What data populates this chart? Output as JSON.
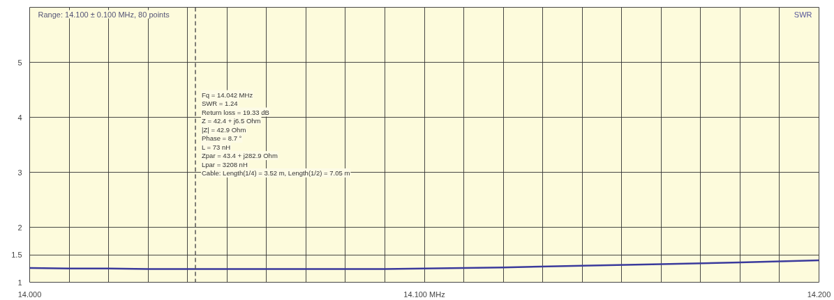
{
  "chart_data": {
    "type": "line",
    "title": "Range: 14.100 ± 0.100 MHz, 80 points",
    "ylabel": "SWR",
    "x": [
      14.0,
      14.01,
      14.02,
      14.03,
      14.04,
      14.06,
      14.08,
      14.09,
      14.1,
      14.12,
      14.14,
      14.16,
      14.18,
      14.2
    ],
    "series": [
      {
        "color": "#3a3a9c",
        "values": [
          1.26,
          1.25,
          1.25,
          1.24,
          1.24,
          1.24,
          1.24,
          1.24,
          1.25,
          1.27,
          1.3,
          1.33,
          1.36,
          1.4
        ]
      }
    ],
    "xlim": [
      14.0,
      14.2
    ],
    "xticks": [
      {
        "value": 14.0,
        "label": "14.000"
      },
      {
        "value": 14.01,
        "label": null
      },
      {
        "value": 14.02,
        "label": null
      },
      {
        "value": 14.03,
        "label": null
      },
      {
        "value": 14.04,
        "label": null
      },
      {
        "value": 14.05,
        "label": null
      },
      {
        "value": 14.06,
        "label": null
      },
      {
        "value": 14.07,
        "label": null
      },
      {
        "value": 14.08,
        "label": null
      },
      {
        "value": 14.09,
        "label": null
      },
      {
        "value": 14.1,
        "label": "14.100 MHz"
      },
      {
        "value": 14.11,
        "label": null
      },
      {
        "value": 14.12,
        "label": null
      },
      {
        "value": 14.13,
        "label": null
      },
      {
        "value": 14.14,
        "label": null
      },
      {
        "value": 14.15,
        "label": null
      },
      {
        "value": 14.16,
        "label": null
      },
      {
        "value": 14.17,
        "label": null
      },
      {
        "value": 14.18,
        "label": null
      },
      {
        "value": 14.19,
        "label": null
      },
      {
        "value": 14.2,
        "label": "14.200"
      }
    ],
    "ylim": [
      1,
      6
    ],
    "yticks": [
      1,
      1.5,
      2,
      3,
      4,
      5
    ],
    "grid": true,
    "marker": "none",
    "line_style": "solid",
    "ref_lines": [
      {
        "axis": "x",
        "value": 14.042,
        "label": null,
        "color": "#555555",
        "line_style": "dashed"
      }
    ],
    "annotations": [
      "Fq = 14.042 MHz",
      "SWR = 1.24",
      "Return loss = 19.33 dB",
      "Z = 42.4 + j6.5 Ohm",
      "|Z| = 42.9 Ohm",
      "Phase = 8.7 °",
      "L = 73 nH",
      "Zpar = 43.4 + j282.9 Ohm",
      "Lpar = 3208 nH",
      "Cable: Length(1/4) = 3.52 m, Length(1/2) = 7.05 m"
    ]
  }
}
